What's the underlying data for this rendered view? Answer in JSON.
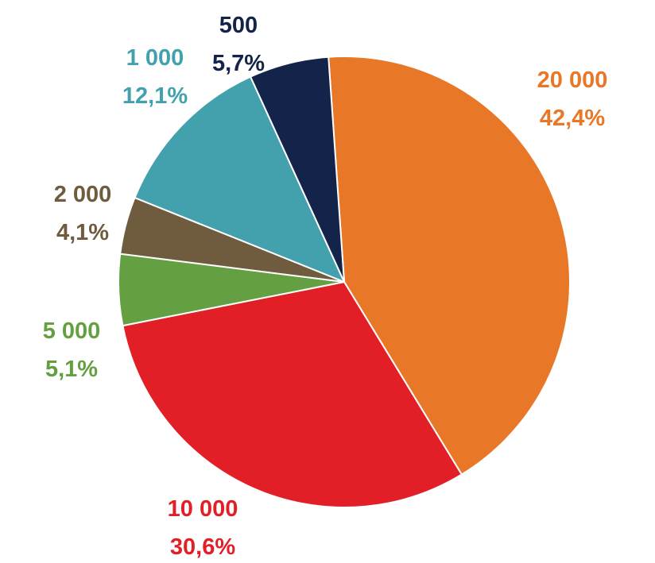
{
  "chart_data": {
    "type": "pie",
    "start_angle_deg": -4,
    "direction": "clockwise",
    "slices": [
      {
        "category": "20 000",
        "value": 42.4,
        "percent_label": "42,4%",
        "color": "#e87728"
      },
      {
        "category": "10 000",
        "value": 30.6,
        "percent_label": "30,6%",
        "color": "#e21f26"
      },
      {
        "category": "5 000",
        "value": 5.1,
        "percent_label": "5,1%",
        "color": "#64a042"
      },
      {
        "category": "2 000",
        "value": 4.1,
        "percent_label": "4,1%",
        "color": "#6f5b3e"
      },
      {
        "category": "1 000",
        "value": 12.1,
        "percent_label": "12,1%",
        "color": "#42a1ac"
      },
      {
        "category": "500",
        "value": 5.7,
        "percent_label": "5,7%",
        "color": "#14234a"
      }
    ]
  }
}
